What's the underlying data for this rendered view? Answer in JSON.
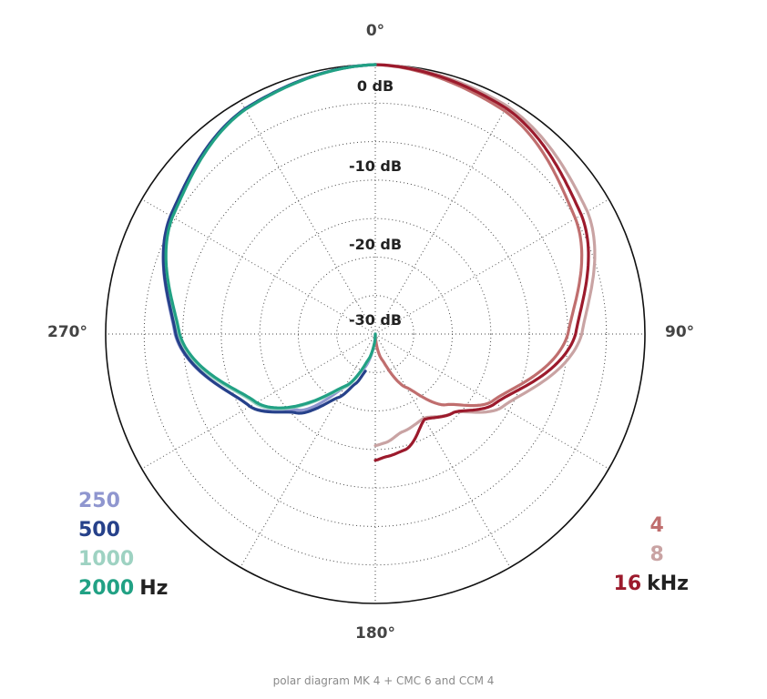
{
  "chart_data": {
    "type": "polar",
    "angle_labels": [
      "0°",
      "90°",
      "180°",
      "270°"
    ],
    "radial_labels": [
      "0 dB",
      "-10 dB",
      "-20 dB",
      "-30 dB"
    ],
    "r_range_db": [
      -35,
      0
    ],
    "angle_grid_step_deg": 30,
    "radial_grid_step_db": 5,
    "legend_left": {
      "unit": "Hz",
      "entries": [
        {
          "label": "250",
          "color": "#8f96cf"
        },
        {
          "label": "500",
          "color": "#26418a"
        },
        {
          "label": "1000",
          "color": "#9ed2c2"
        },
        {
          "label": "2000",
          "color": "#21a184"
        }
      ]
    },
    "legend_right": {
      "unit": "kHz",
      "entries": [
        {
          "label": "4",
          "color": "#c06e6e"
        },
        {
          "label": "8",
          "color": "#c9a3a3"
        },
        {
          "label": "16",
          "color": "#9c1a2c"
        }
      ]
    },
    "series": [
      {
        "name": "250",
        "side": "left",
        "color": "#8f96cf",
        "angles": [
          0,
          30,
          60,
          90,
          120,
          135,
          150,
          160,
          180
        ],
        "db": [
          0,
          -1.2,
          -4.3,
          -9,
          -16.2,
          -21,
          -27,
          -30,
          -35
        ]
      },
      {
        "name": "500",
        "side": "left",
        "color": "#26418a",
        "angles": [
          0,
          30,
          60,
          90,
          120,
          135,
          150,
          158,
          165
        ],
        "db": [
          0,
          -1.2,
          -4.3,
          -9.1,
          -16.2,
          -20.5,
          -25.5,
          -28,
          -30
        ]
      },
      {
        "name": "1000",
        "side": "left",
        "color": "#9ed2c2",
        "angles": [
          0,
          30,
          60,
          90,
          120,
          150,
          165,
          175,
          180
        ],
        "db": [
          0,
          -1.2,
          -4.4,
          -9.4,
          -17,
          -27,
          -31.5,
          -33.8,
          -35
        ]
      },
      {
        "name": "2000",
        "side": "left",
        "color": "#21a184",
        "angles": [
          0,
          30,
          60,
          90,
          120,
          150,
          165,
          175,
          180
        ],
        "db": [
          0,
          -1.3,
          -4.6,
          -9.6,
          -17.2,
          -27.2,
          -31.6,
          -33.8,
          -35
        ]
      },
      {
        "name": "4",
        "side": "right",
        "color": "#c06e6e",
        "angles": [
          0,
          30,
          60,
          90,
          120,
          135,
          150,
          165,
          180
        ],
        "db": [
          0,
          -1.5,
          -5,
          -10,
          -17.5,
          -22,
          -27,
          -31.5,
          -35
        ]
      },
      {
        "name": "8",
        "side": "right",
        "color": "#c9a3a3",
        "angles": [
          0,
          30,
          60,
          90,
          120,
          135,
          150,
          165,
          175,
          180
        ],
        "db": [
          0,
          -0.8,
          -3.2,
          -8.2,
          -16,
          -20.6,
          -22.4,
          -21.8,
          -20.8,
          -20.5
        ]
      },
      {
        "name": "16",
        "side": "right",
        "color": "#9c1a2c",
        "angles": [
          0,
          30,
          60,
          90,
          120,
          135,
          150,
          165,
          175,
          180
        ],
        "db": [
          0,
          -1.1,
          -4.1,
          -9,
          -17,
          -20.6,
          -22.2,
          -19.5,
          -19,
          -18.6
        ]
      }
    ]
  },
  "caption": "polar diagram MK 4 + CMC 6 and CCM 4"
}
